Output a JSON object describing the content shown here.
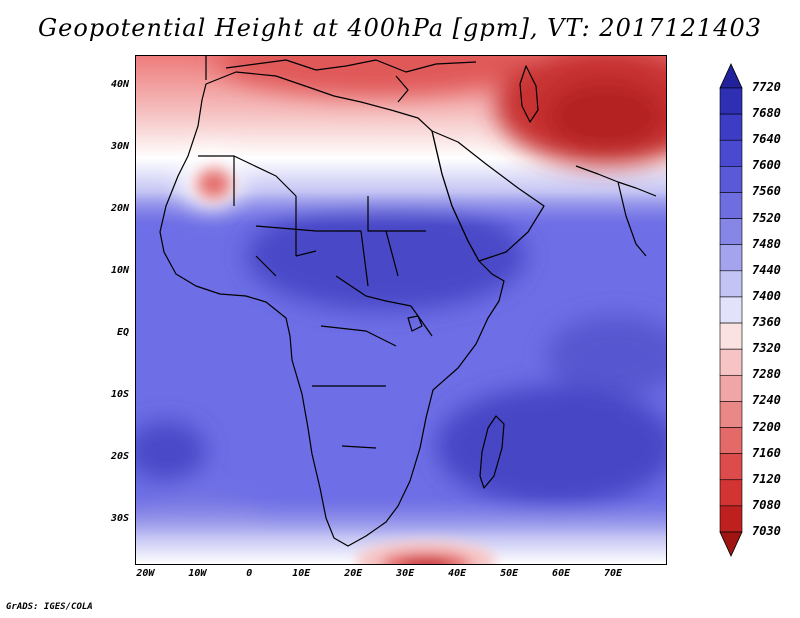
{
  "title": "Geopotential Height at 400hPa [gpm], VT: 2017121403",
  "footer": "GrADS: IGES/COLA",
  "map": {
    "y_ticks": [
      {
        "label": "40N",
        "lat": 40
      },
      {
        "label": "30N",
        "lat": 30
      },
      {
        "label": "20N",
        "lat": 20
      },
      {
        "label": "10N",
        "lat": 10
      },
      {
        "label": "EQ",
        "lat": 0
      },
      {
        "label": "10S",
        "lat": -10
      },
      {
        "label": "20S",
        "lat": -20
      },
      {
        "label": "30S",
        "lat": -30
      }
    ],
    "x_ticks": [
      {
        "label": "20W",
        "lon": -20
      },
      {
        "label": "10W",
        "lon": -10
      },
      {
        "label": "0",
        "lon": 0
      },
      {
        "label": "10E",
        "lon": 10
      },
      {
        "label": "20E",
        "lon": 20
      },
      {
        "label": "30E",
        "lon": 30
      },
      {
        "label": "40E",
        "lon": 40
      },
      {
        "label": "50E",
        "lon": 50
      },
      {
        "label": "60E",
        "lon": 60
      },
      {
        "label": "70E",
        "lon": 70
      }
    ],
    "lon_range": [
      -22,
      80
    ],
    "lat_range": [
      -37,
      45
    ]
  },
  "colorbar": {
    "labels": [
      "7720",
      "7680",
      "7640",
      "7600",
      "7560",
      "7520",
      "7480",
      "7440",
      "7400",
      "7360",
      "7320",
      "7280",
      "7240",
      "7200",
      "7160",
      "7120",
      "7080",
      "7030"
    ],
    "colors": [
      "#22229c",
      "#2f2fb4",
      "#3c3cc4",
      "#4a4ad0",
      "#5a5ad8",
      "#6e6ee0",
      "#8686e6",
      "#a4a4ee",
      "#c4c4f4",
      "#e2e2fa",
      "#fbe2e2",
      "#f6c4c4",
      "#f0a6a6",
      "#ea8888",
      "#e46a6a",
      "#dc4c4c",
      "#d23434",
      "#be2020",
      "#a01414"
    ]
  },
  "colors": {
    "low": "#cf3b3b",
    "high": "#4444c8",
    "neutral": "#ffffff",
    "coast": "#000000"
  }
}
